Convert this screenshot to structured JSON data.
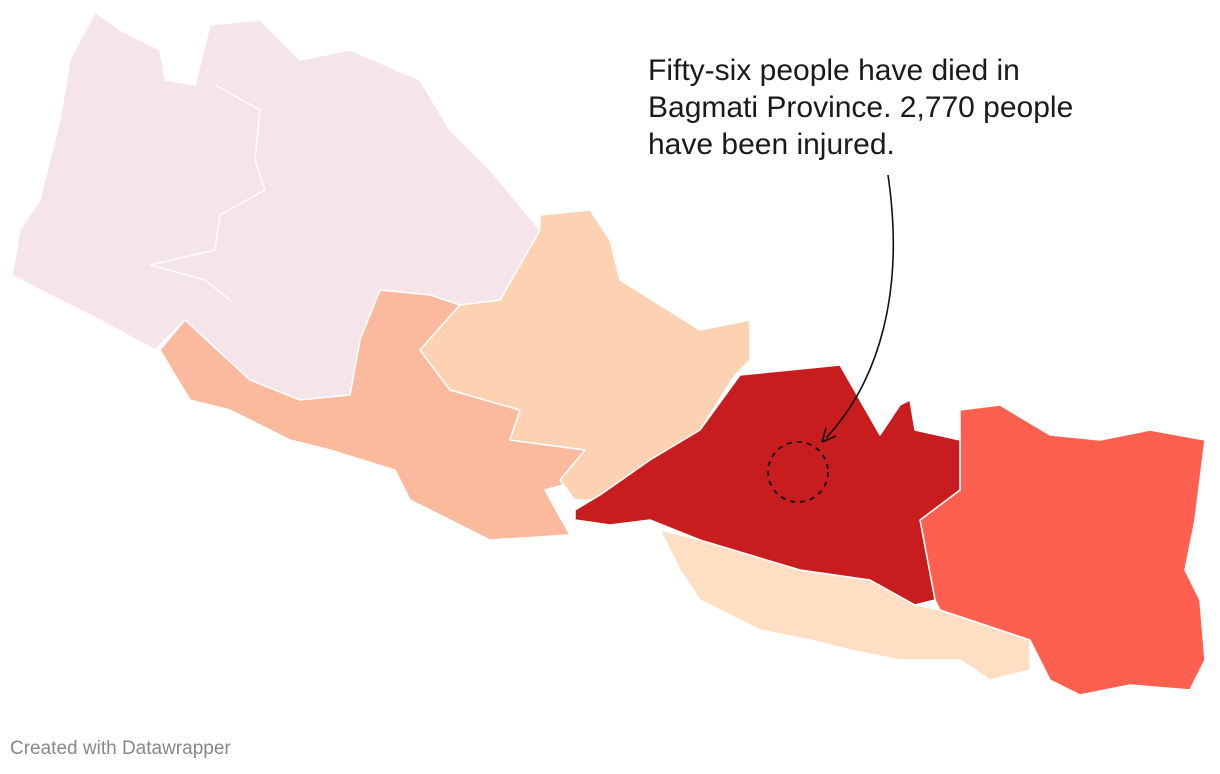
{
  "annotation": "Fifty-six people have died in Bagmati Province. 2,770 people have been injured.",
  "footer": "Created with Datawrapper"
}
